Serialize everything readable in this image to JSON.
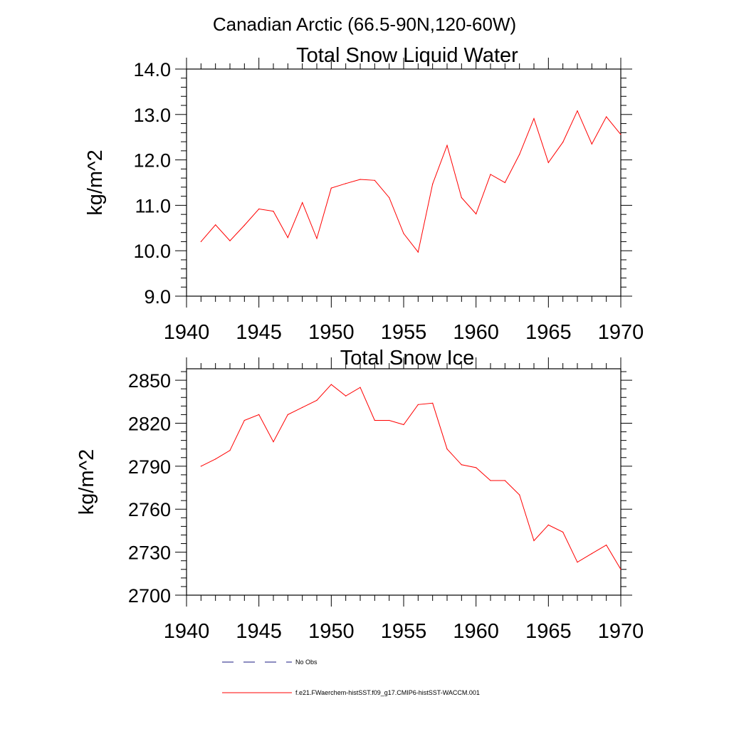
{
  "figure": {
    "suptitle": "Canadian Arctic (66.5-90N,120-60W)",
    "line_color": "#ff0000",
    "obs_color": "#1a1a80"
  },
  "legend": {
    "obs_label": "No Obs",
    "model_label": "f.e21.FWaerchem-histSST.f09_g17.CMIP6-histSST-WACCM.001"
  },
  "chart_data": [
    {
      "type": "line",
      "title": "Total Snow Liquid Water",
      "xlabel": "",
      "ylabel": "kg/m^2",
      "xlim": [
        1940,
        1970
      ],
      "ylim": [
        9.0,
        14.0
      ],
      "xticks": [
        "1940",
        "1945",
        "1950",
        "1955",
        "1960",
        "1965",
        "1970"
      ],
      "yticks": [
        "9.0",
        "10.0",
        "11.0",
        "12.0",
        "13.0",
        "14.0"
      ],
      "grid": false,
      "series": [
        {
          "name": "f.e21.FWaerchem-histSST.f09_g17.CMIP6-histSST-WACCM.001",
          "x": [
            1941,
            1942,
            1943,
            1944,
            1945,
            1946,
            1947,
            1948,
            1949,
            1950,
            1951,
            1952,
            1953,
            1954,
            1955,
            1956,
            1957,
            1958,
            1959,
            1960,
            1961,
            1962,
            1963,
            1964,
            1965,
            1966,
            1967,
            1968,
            1969,
            1970
          ],
          "y": [
            10.2,
            10.57,
            10.22,
            10.56,
            10.92,
            10.87,
            10.29,
            11.06,
            10.27,
            11.38,
            11.48,
            11.57,
            11.55,
            11.17,
            10.38,
            9.97,
            11.47,
            12.32,
            11.17,
            10.81,
            11.68,
            11.5,
            12.12,
            12.91,
            11.94,
            12.39,
            13.08,
            12.35,
            12.95,
            12.56
          ]
        }
      ]
    },
    {
      "type": "line",
      "title": "Total Snow Ice",
      "xlabel": "",
      "ylabel": "kg/m^2",
      "xlim": [
        1940,
        1970
      ],
      "ylim": [
        2700,
        2858
      ],
      "xticks": [
        "1940",
        "1945",
        "1950",
        "1955",
        "1960",
        "1965",
        "1970"
      ],
      "yticks": [
        "2700",
        "2730",
        "2760",
        "2790",
        "2820",
        "2850"
      ],
      "grid": false,
      "series": [
        {
          "name": "f.e21.FWaerchem-histSST.f09_g17.CMIP6-histSST-WACCM.001",
          "x": [
            1941,
            1942,
            1943,
            1944,
            1945,
            1946,
            1947,
            1948,
            1949,
            1950,
            1951,
            1952,
            1953,
            1954,
            1955,
            1956,
            1957,
            1958,
            1959,
            1960,
            1961,
            1962,
            1963,
            1964,
            1965,
            1966,
            1967,
            1968,
            1969,
            1970
          ],
          "y": [
            2790,
            2795,
            2801,
            2822,
            2826,
            2807,
            2826,
            2831,
            2836,
            2847,
            2839,
            2845,
            2822,
            2822,
            2819,
            2833,
            2834,
            2802,
            2791,
            2789,
            2780,
            2780,
            2770,
            2738,
            2749,
            2744,
            2723,
            2729,
            2735,
            2718
          ]
        }
      ]
    }
  ]
}
